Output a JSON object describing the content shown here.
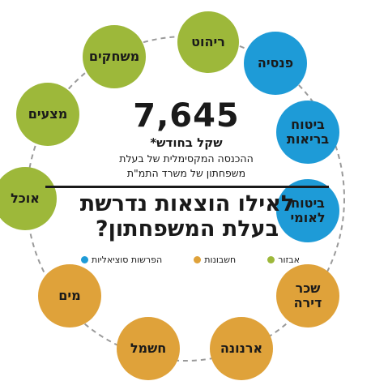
{
  "colors": {
    "blue": "#1e9bd7",
    "orange": "#dfa23a",
    "green": "#9db83a",
    "ring": "#9a9a9a"
  },
  "amount": "7,645",
  "amount_caption": "שקל בחודש*",
  "description_line1": "ההכנסה המקסימלית של בעלת",
  "description_line2": "משפחתון של משרד התמ\"ת",
  "question_line1": "לאילו הוצאות נדרשת",
  "question_line2": "בעלת המשפחתון?",
  "legend": [
    {
      "label": "הפרשות סוציאליות",
      "category": "blue"
    },
    {
      "label": "חשבונות",
      "category": "orange"
    },
    {
      "label": "אבזור",
      "category": "green"
    }
  ],
  "items": [
    {
      "label": "ריהוט",
      "category": "green"
    },
    {
      "label": "פנסיה",
      "category": "blue"
    },
    {
      "label": "ביטוח\nבריאות",
      "category": "blue"
    },
    {
      "label": "ביטוח\nלאומי",
      "category": "blue"
    },
    {
      "label": "שכר\nדירה",
      "category": "orange"
    },
    {
      "label": "ארנונה",
      "category": "orange"
    },
    {
      "label": "חשמל",
      "category": "orange"
    },
    {
      "label": "מים",
      "category": "orange"
    },
    {
      "label": "אוכל",
      "category": "green"
    },
    {
      "label": "מצעים",
      "category": "green"
    },
    {
      "label": "משחקים",
      "category": "green"
    }
  ]
}
